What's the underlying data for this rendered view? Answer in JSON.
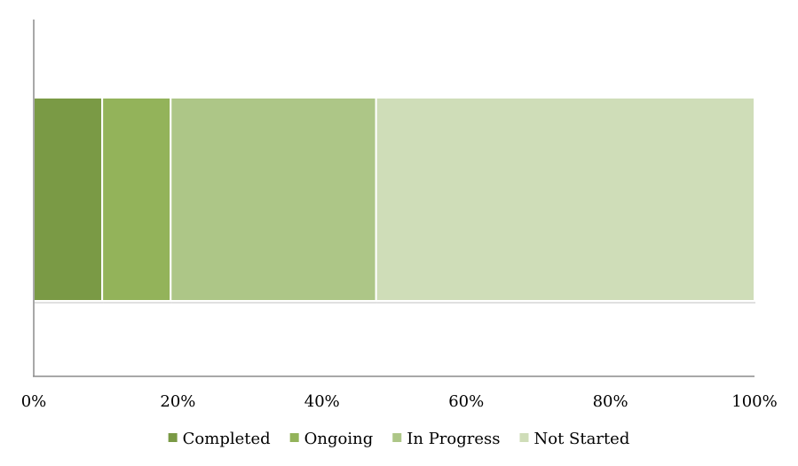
{
  "chart_data": {
    "type": "bar",
    "orientation": "horizontal",
    "stacked": true,
    "percent_stacked": true,
    "categories": [
      ""
    ],
    "series": [
      {
        "name": "Completed",
        "values": [
          9.5
        ],
        "color": "#7a9a45"
      },
      {
        "name": "Ongoing",
        "values": [
          9.5
        ],
        "color": "#93b35a"
      },
      {
        "name": "In Progress",
        "values": [
          28.5
        ],
        "color": "#adc687"
      },
      {
        "name": "Not Started",
        "values": [
          52.5
        ],
        "color": "#cfddb8"
      }
    ],
    "xlim": [
      0,
      100
    ],
    "xticks": [
      "0%",
      "20%",
      "40%",
      "60%",
      "80%",
      "100%"
    ],
    "title": "",
    "xlabel": "",
    "ylabel": "",
    "grid": false,
    "legend_position": "bottom"
  }
}
